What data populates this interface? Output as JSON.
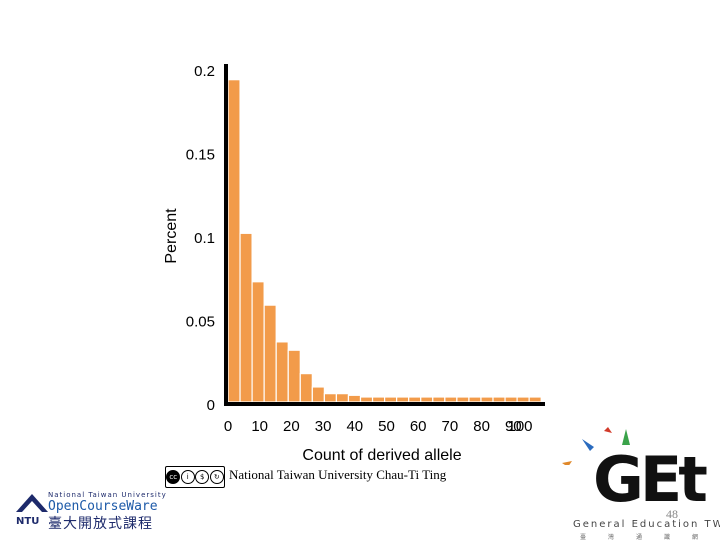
{
  "chart_data": {
    "type": "bar",
    "title": "",
    "xlabel": "Count of derived allele",
    "ylabel": "Percent",
    "ylim": [
      0,
      0.2
    ],
    "xlim": [
      0,
      100
    ],
    "y_ticks": [
      "0.2",
      "0.15",
      "0.1",
      "0.05",
      "0"
    ],
    "y_tick_values": [
      0.2,
      0.15,
      0.1,
      0.05,
      0
    ],
    "x_ticks": [
      "0",
      "10",
      "20",
      "30",
      "40",
      "50",
      "60",
      "70",
      "80",
      "90",
      "100"
    ],
    "x_tick_values": [
      0,
      10,
      20,
      30,
      40,
      50,
      60,
      70,
      80,
      90,
      100
    ],
    "bin_width": 3.8,
    "values": [
      0.193,
      0.101,
      0.072,
      0.058,
      0.036,
      0.031,
      0.017,
      0.009,
      0.005,
      0.005,
      0.004,
      0.003,
      0.003,
      0.003,
      0.003,
      0.003,
      0.003,
      0.003,
      0.003,
      0.003,
      0.003,
      0.003,
      0.003,
      0.003,
      0.003,
      0.003
    ],
    "bar_color": "#f29b4a",
    "grid": false
  },
  "footer": {
    "credit": "National Taiwan University Chau-Ti Ting",
    "license_badge": "cc by nc sa",
    "page_number": "48"
  },
  "logos": {
    "ntu_top": "National Taiwan University",
    "ntu_ocw": "OpenCourseWare",
    "ntu_zh": "臺大開放式課程",
    "ntu_abbr": "NTU",
    "get_main": "GEt",
    "get_sub": "General Education TW",
    "get_zh": "臺灣通識網"
  }
}
